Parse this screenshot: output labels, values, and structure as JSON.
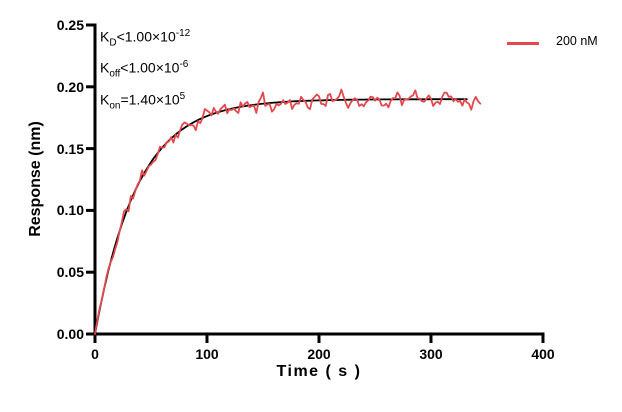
{
  "legend": {
    "label": "200 nM",
    "color": "#e2484d"
  },
  "kinetics": [
    {
      "base": "K",
      "sub": "D",
      "rel": "<1.00×10",
      "exp": "-12"
    },
    {
      "base": "K",
      "sub": "off",
      "rel": "<1.00×10",
      "exp": "-6"
    },
    {
      "base": "K",
      "sub": "on",
      "rel": "=1.40×10",
      "exp": "5"
    }
  ],
  "chart_data": {
    "type": "line",
    "title": "",
    "xlabel": "Time ( s )",
    "ylabel": "Response (nm)",
    "xlim": [
      0,
      400
    ],
    "ylim": [
      0,
      0.25
    ],
    "x_ticks": [
      0,
      100,
      200,
      300,
      400
    ],
    "x_tick_labels": [
      "0",
      "100",
      "200",
      "300",
      "400"
    ],
    "y_ticks": [
      0,
      0.05,
      0.1,
      0.15,
      0.2,
      0.25
    ],
    "y_tick_labels": [
      "0.00",
      "0.05",
      "0.10",
      "0.15",
      "0.20",
      "0.25"
    ],
    "grid": false,
    "legend_position": "top-right",
    "legend_entries": [
      "200 nM"
    ],
    "annotations": [
      "KD<1.00×10-12",
      "Koff<1.00×10-6",
      "Kon=1.40×105"
    ],
    "series": [
      {
        "name": "200 nM",
        "role": "measured",
        "color": "#e2484d",
        "line_width": 1.8,
        "model": "y = plateau*(1-exp(-t/tau)) + noise",
        "plateau": 0.19,
        "tau": 38,
        "t_start": 0,
        "t_end": 345,
        "step": 2,
        "noise_amplitude": 0.0048,
        "noise_seed": 11
      },
      {
        "name": "fit",
        "role": "fit",
        "color": "#000000",
        "line_width": 1.8,
        "model": "y = plateau*(1-exp(-t/tau))",
        "plateau": 0.19,
        "tau": 38,
        "t_start": 0,
        "t_end": 332,
        "step": 4
      }
    ]
  }
}
